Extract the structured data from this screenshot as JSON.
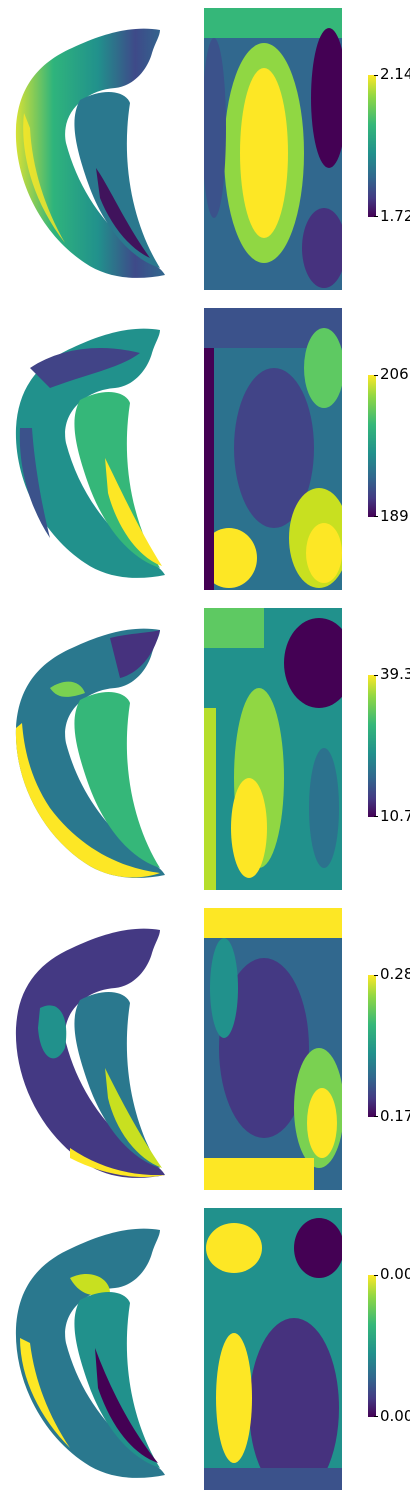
{
  "colors": {
    "viridis_dark": "#440154",
    "viridis_mid": "#21918c",
    "viridis_light": "#fde725",
    "background": "#ffffff"
  },
  "panels": [
    {
      "colorbar": {
        "max_label": "2.14",
        "min_label": "1.72"
      }
    },
    {
      "colorbar": {
        "max_label": "206",
        "min_label": "189"
      }
    },
    {
      "colorbar": {
        "max_label": "39.3",
        "min_label": "10.7"
      }
    },
    {
      "colorbar": {
        "max_label": "0.28",
        "min_label": "0.17"
      }
    },
    {
      "colorbar": {
        "max_label": "0.00",
        "min_label": "0.00"
      }
    }
  ]
}
